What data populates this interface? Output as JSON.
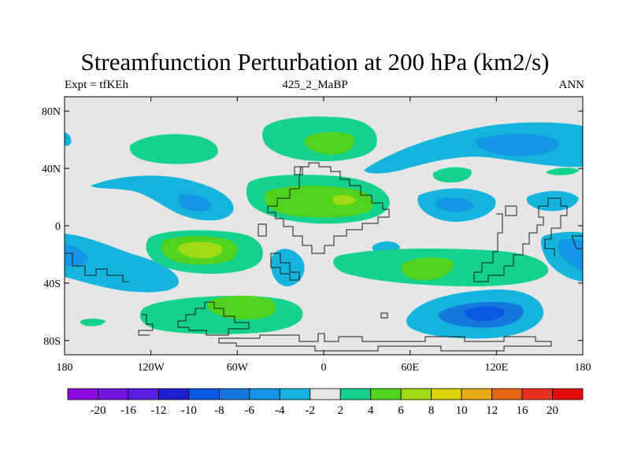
{
  "title": "Streamfunction Perturbation at 200 hPa (km2/s)",
  "subtitle_left": "Expt = tfKEh",
  "subtitle_center": "425_2_MaBP",
  "subtitle_right": "ANN",
  "map": {
    "lon_ticks": [
      "180",
      "120W",
      "60W",
      "0",
      "60E",
      "120E",
      "180"
    ],
    "lat_ticks": [
      "80N",
      "40N",
      "0",
      "40S",
      "80S"
    ],
    "projection": "cylindrical-equidistant",
    "lon_range": [
      -180,
      180
    ],
    "lat_range": [
      -90,
      90
    ],
    "background_color": "#e6e6e6"
  },
  "colorbar": {
    "labels": [
      "-20",
      "-16",
      "-12",
      "-10",
      "-8",
      "-6",
      "-4",
      "-2",
      "2",
      "4",
      "6",
      "8",
      "10",
      "12",
      "16",
      "20"
    ],
    "colors": [
      "#8a0ae0",
      "#6e14dc",
      "#5a1ee6",
      "#1e1ed2",
      "#0a5ae6",
      "#1478dc",
      "#1496e6",
      "#14b4dc",
      "#e6e6e6",
      "#14d28c",
      "#50d21e",
      "#a0dc14",
      "#dcd20a",
      "#e6aa14",
      "#e66414",
      "#e6321e",
      "#e60a0a"
    ]
  }
}
